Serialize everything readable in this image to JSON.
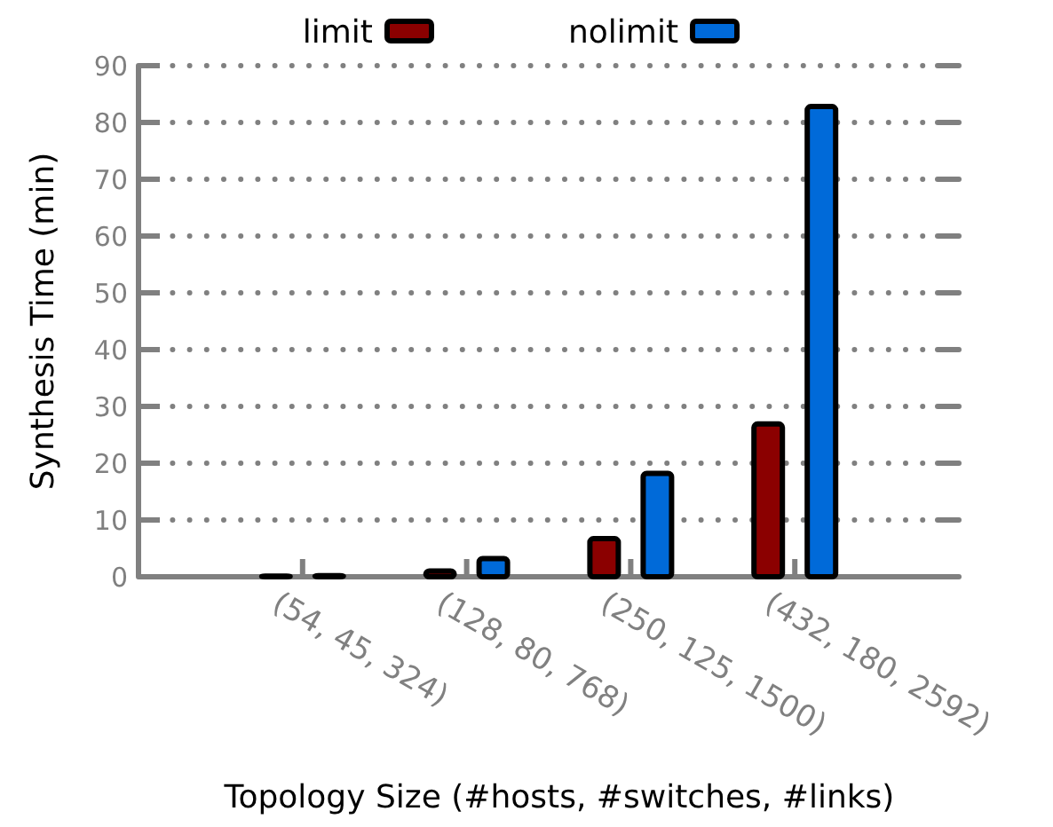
{
  "chart_data": {
    "type": "bar",
    "xlabel": "Topology Size (#hosts, #switches, #links)",
    "ylabel": "Synthesis Time (min)",
    "categories": [
      "(54, 45, 324)",
      "(128, 80, 768)",
      "(250, 125, 1500)",
      "(432, 180, 2592)"
    ],
    "series": [
      {
        "name": "limit",
        "color": "#8b0000",
        "values": [
          0.1,
          1.0,
          6.7,
          26.9
        ]
      },
      {
        "name": "nolimit",
        "color": "#006ad9",
        "values": [
          0.2,
          3.2,
          18.2,
          82.8
        ]
      }
    ],
    "ylim": [
      0,
      90
    ],
    "yticks": [
      0,
      10,
      20,
      30,
      40,
      50,
      60,
      70,
      80,
      90
    ],
    "grid": "y",
    "legend": "top"
  }
}
